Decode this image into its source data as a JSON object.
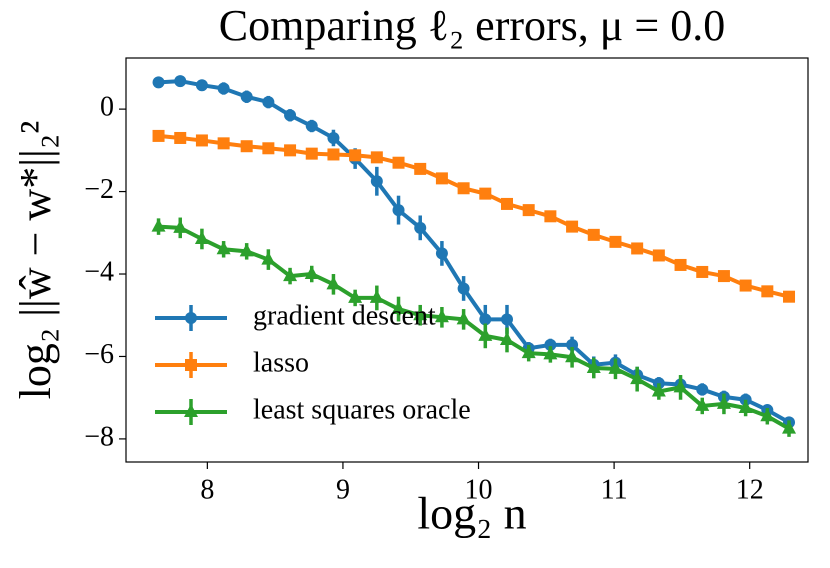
{
  "chart_data": {
    "type": "line",
    "title": "Comparing ℓ₂ errors, μ = 0.0",
    "x_label": "log₂ n",
    "y_label": "log₂ ||ŵ − w*||₂²",
    "x": [
      7.64,
      7.8,
      7.96,
      8.12,
      8.29,
      8.45,
      8.61,
      8.77,
      8.93,
      9.09,
      9.25,
      9.41,
      9.57,
      9.73,
      9.89,
      10.05,
      10.21,
      10.37,
      10.53,
      10.69,
      10.85,
      11.01,
      11.17,
      11.33,
      11.49,
      11.65,
      11.81,
      11.97,
      12.13,
      12.29
    ],
    "series": [
      {
        "name": "gradient descent",
        "color": "#1f77b4",
        "marker": "circle",
        "values": [
          0.65,
          0.68,
          0.58,
          0.5,
          0.3,
          0.17,
          -0.15,
          -0.41,
          -0.7,
          -1.2,
          -1.75,
          -2.45,
          -2.88,
          -3.5,
          -4.35,
          -5.1,
          -5.1,
          -5.8,
          -5.72,
          -5.72,
          -6.2,
          -6.15,
          -6.45,
          -6.65,
          -6.68,
          -6.8,
          -6.98,
          -7.05,
          -7.3,
          -7.6
        ],
        "errors": [
          0.08,
          0.08,
          0.08,
          0.15,
          0.15,
          0.15,
          0.15,
          0.15,
          0.2,
          0.25,
          0.35,
          0.35,
          0.3,
          0.3,
          0.3,
          0.35,
          0.35,
          0.15,
          0.15,
          0.2,
          0.2,
          0.2,
          0.2,
          0.15,
          0.15,
          0.15,
          0.15,
          0.15,
          0.12,
          0.12
        ]
      },
      {
        "name": "lasso",
        "color": "#ff7f0e",
        "marker": "square",
        "values": [
          -0.65,
          -0.7,
          -0.76,
          -0.83,
          -0.9,
          -0.95,
          -1.0,
          -1.08,
          -1.1,
          -1.12,
          -1.17,
          -1.3,
          -1.45,
          -1.68,
          -1.92,
          -2.05,
          -2.3,
          -2.45,
          -2.6,
          -2.85,
          -3.05,
          -3.22,
          -3.38,
          -3.55,
          -3.78,
          -3.95,
          -4.05,
          -4.28,
          -4.42,
          -4.55
        ],
        "errors": [
          0.12,
          0.12,
          0.1,
          0.1,
          0.1,
          0.1,
          0.1,
          0.1,
          0.1,
          0.1,
          0.1,
          0.1,
          0.1,
          0.1,
          0.1,
          0.1,
          0.12,
          0.12,
          0.12,
          0.12,
          0.12,
          0.12,
          0.12,
          0.1,
          0.1,
          0.1,
          0.1,
          0.1,
          0.1,
          0.1
        ]
      },
      {
        "name": "least squares oracle",
        "color": "#2ca02c",
        "marker": "triangle",
        "values": [
          -2.85,
          -2.88,
          -3.15,
          -3.4,
          -3.45,
          -3.65,
          -4.05,
          -4.0,
          -4.25,
          -4.58,
          -4.58,
          -4.85,
          -5.0,
          -5.05,
          -5.1,
          -5.5,
          -5.6,
          -5.92,
          -5.95,
          -6.02,
          -6.28,
          -6.3,
          -6.55,
          -6.85,
          -6.75,
          -7.2,
          -7.15,
          -7.25,
          -7.45,
          -7.75
        ],
        "errors": [
          0.2,
          0.25,
          0.25,
          0.2,
          0.2,
          0.25,
          0.2,
          0.2,
          0.25,
          0.2,
          0.3,
          0.3,
          0.25,
          0.25,
          0.25,
          0.3,
          0.3,
          0.2,
          0.2,
          0.25,
          0.25,
          0.25,
          0.3,
          0.2,
          0.3,
          0.2,
          0.25,
          0.2,
          0.2,
          0.2
        ]
      }
    ],
    "xlim": [
      7.4,
      12.43
    ],
    "ylim": [
      -8.56,
      1.24
    ],
    "xticks": [
      8,
      9,
      10,
      11,
      12
    ],
    "yticks": [
      {
        "value": -8,
        "label": "−8"
      },
      {
        "value": -6,
        "label": "−6"
      },
      {
        "value": -4,
        "label": "−4"
      },
      {
        "value": -2,
        "label": "−2"
      },
      0
    ],
    "legend": "lower left"
  }
}
